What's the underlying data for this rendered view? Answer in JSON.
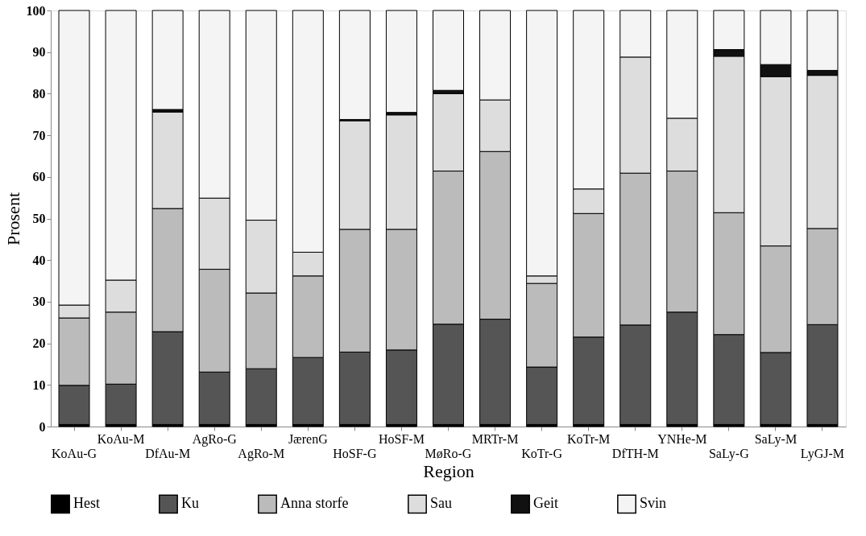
{
  "chart_data": {
    "type": "bar",
    "stacked": true,
    "xlabel": "Region",
    "ylabel": "Prosent",
    "categories": [
      "KoAu-G",
      "KoAu-M",
      "DfAu-M",
      "AgRo-G",
      "AgRo-M",
      "JærenG",
      "HoSF-G",
      "HoSF-M",
      "MøRo-G",
      "MRTr-M",
      "KoTr-G",
      "KoTr-M",
      "DfTH-M",
      "YNHe-M",
      "SaLy-G",
      "SaLy-M",
      "LyGJ-M"
    ],
    "series": [
      {
        "name": "Hest",
        "color": "#000000",
        "values": [
          0.5,
          0.5,
          0.5,
          0.5,
          0.5,
          0.5,
          0.5,
          0.5,
          0.5,
          0.5,
          0.5,
          0.5,
          0.5,
          0.5,
          0.5,
          0.5,
          0.5
        ]
      },
      {
        "name": "Ku",
        "color": "#555555",
        "values": [
          9.4,
          9.7,
          22.3,
          12.6,
          13.4,
          16.1,
          17.4,
          17.9,
          24.1,
          25.3,
          13.8,
          21.0,
          23.9,
          27.0,
          21.6,
          17.3,
          24.0
        ]
      },
      {
        "name": "Anna storfe",
        "color": "#bbbbbb",
        "values": [
          16.2,
          17.3,
          29.6,
          24.7,
          18.2,
          19.6,
          29.5,
          29.0,
          36.8,
          40.3,
          20.1,
          29.7,
          36.5,
          33.9,
          29.3,
          25.6,
          23.1
        ]
      },
      {
        "name": "Sau",
        "color": "#dddddd",
        "values": [
          3.1,
          7.7,
          23.2,
          17.1,
          17.5,
          5.7,
          26.1,
          27.5,
          18.6,
          12.4,
          1.8,
          5.9,
          27.9,
          12.7,
          37.6,
          40.7,
          36.8
        ]
      },
      {
        "name": "Geit",
        "color": "#111111",
        "values": [
          null,
          null,
          0.6,
          null,
          null,
          null,
          0.3,
          0.6,
          0.8,
          null,
          null,
          null,
          null,
          null,
          1.6,
          2.9,
          1.2
        ]
      },
      {
        "name": "Svin",
        "color": "#f4f4f4",
        "values": [
          70.8,
          64.8,
          23.8,
          45.1,
          50.4,
          58.1,
          26.2,
          24.5,
          19.2,
          21.5,
          63.8,
          42.9,
          11.2,
          25.9,
          9.4,
          13.0,
          14.4
        ]
      }
    ],
    "ylim": [
      0,
      100
    ],
    "yticks": [
      0,
      10,
      20,
      30,
      40,
      50,
      60,
      70,
      80,
      90,
      100
    ],
    "grid": false,
    "legend": "bottom"
  }
}
